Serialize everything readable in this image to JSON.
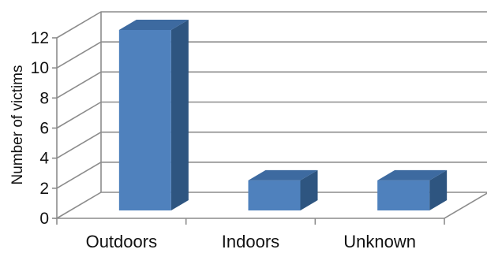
{
  "chart_data": {
    "type": "bar",
    "categories": [
      "Outdoors",
      "Indoors",
      "Unknown"
    ],
    "values": [
      12,
      2,
      2
    ],
    "ylabel": "Number of victims",
    "xlabel": "",
    "ylim": [
      0,
      12
    ],
    "yticks": [
      0,
      2,
      4,
      6,
      8,
      10,
      12
    ],
    "grid": true,
    "style": "3d-column",
    "colors": {
      "front": "#4f81bd",
      "side": "#2e5580",
      "top": "#3d6aa0",
      "grid": "#8c8c8c"
    }
  }
}
